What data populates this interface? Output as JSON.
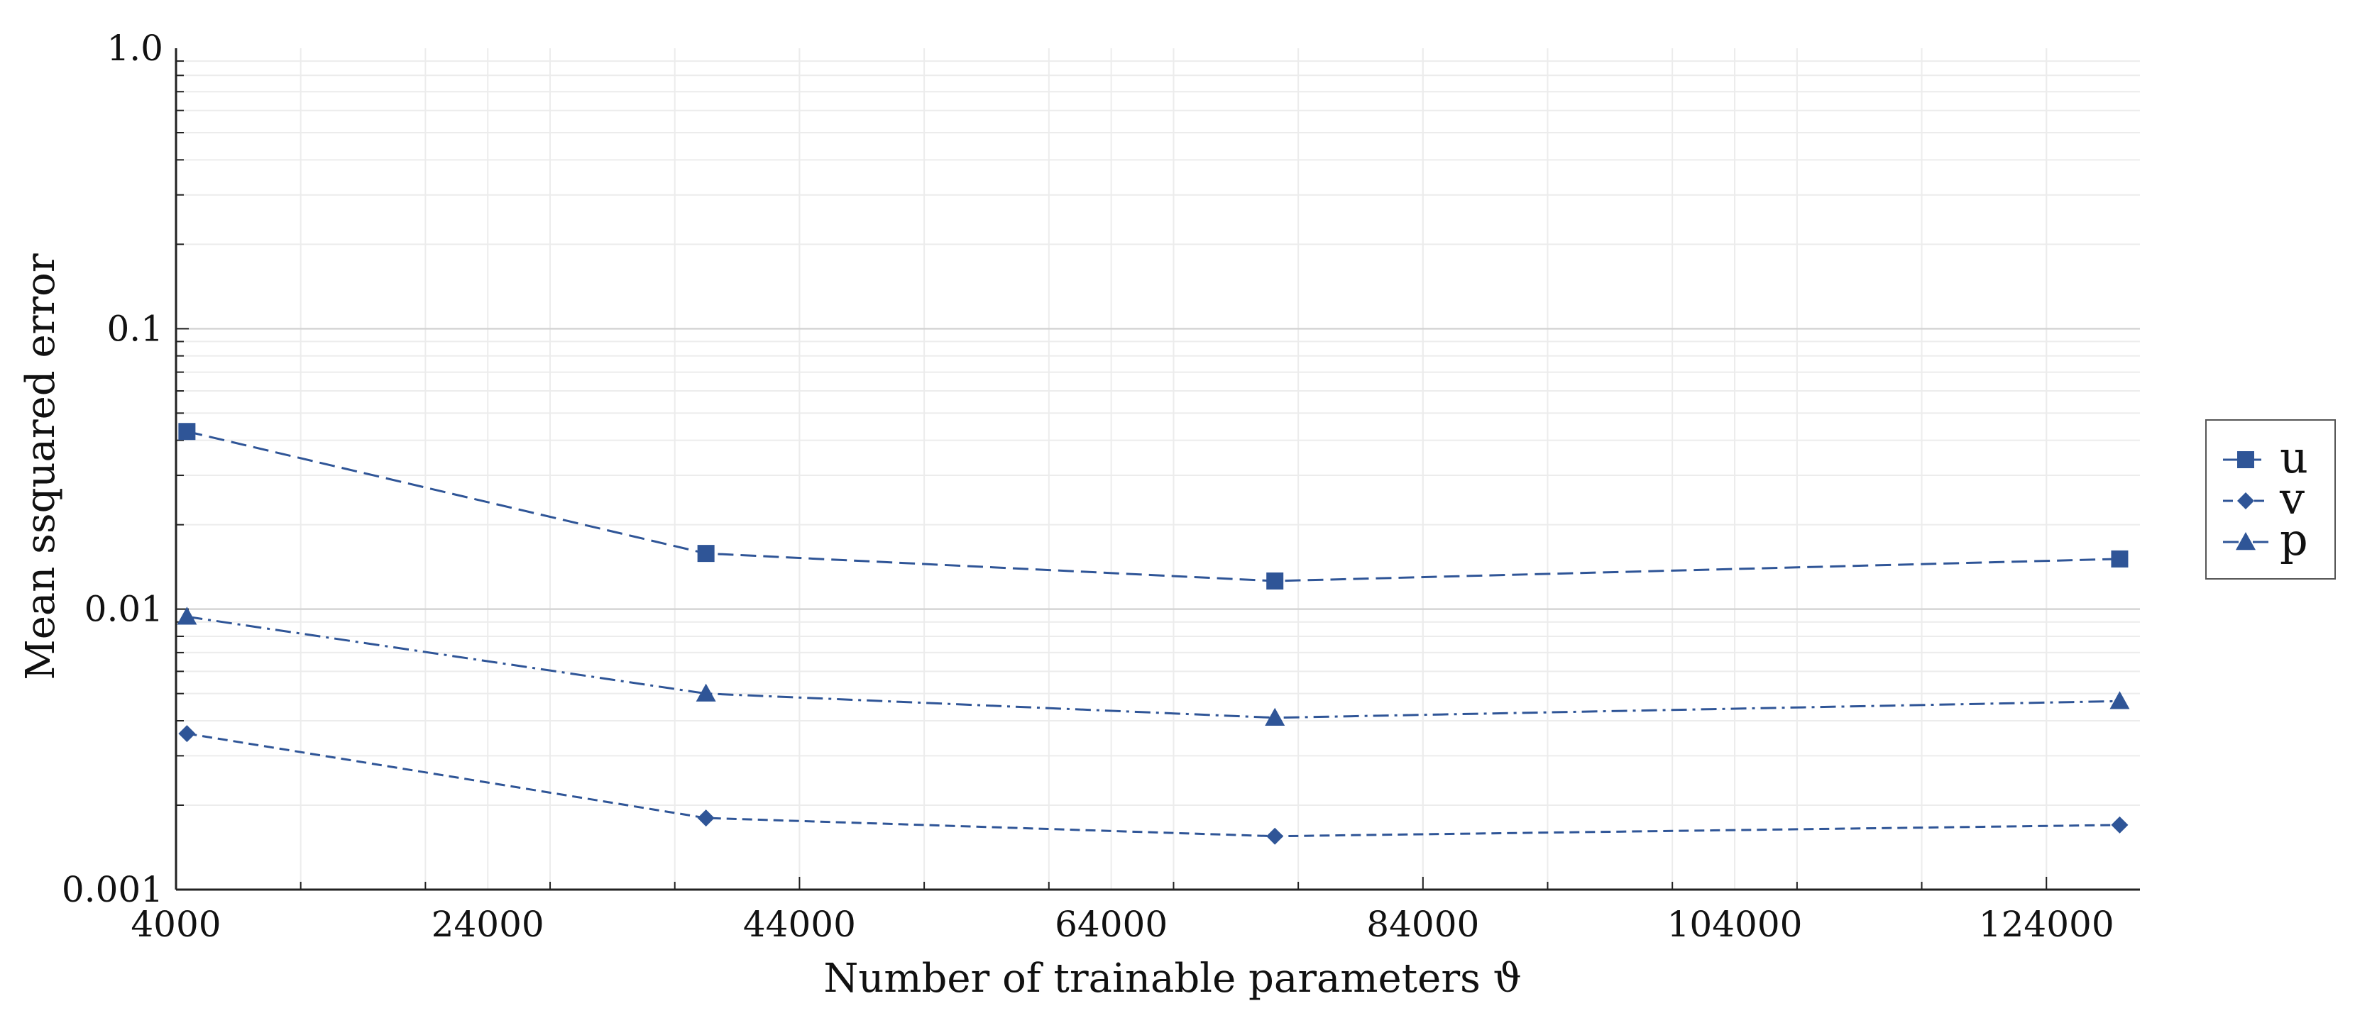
{
  "colors": {
    "series": "#2f5597",
    "major_grid": "#d4d4d4",
    "minor_grid": "#ececec",
    "axis": "#222222"
  },
  "chart_data": {
    "type": "line",
    "xlabel": "Number of trainable parameters ϑ",
    "ylabel": "Mean ssquared error",
    "xlim": [
      4000,
      130000
    ],
    "ylim": [
      0.001,
      1.0
    ],
    "yscale": "log",
    "grid": true,
    "legend_placement": "right",
    "xticks": [
      {
        "value": 4000,
        "label": "4000"
      },
      {
        "value": 24000,
        "label": "24000"
      },
      {
        "value": 44000,
        "label": "44000"
      },
      {
        "value": 64000,
        "label": "64000"
      },
      {
        "value": 84000,
        "label": "84000"
      },
      {
        "value": 104000,
        "label": "104000"
      },
      {
        "value": 124000,
        "label": "124000"
      }
    ],
    "yticks": [
      {
        "value": 0.001,
        "label": "0.001"
      },
      {
        "value": 0.01,
        "label": "0.01"
      },
      {
        "value": 0.1,
        "label": "0.1"
      },
      {
        "value": 1.0,
        "label": "1.0"
      }
    ],
    "x": [
      4700,
      38000,
      74500,
      128700
    ],
    "series": [
      {
        "name": "u",
        "marker": "square",
        "dash": "dashed",
        "values": [
          0.043,
          0.0158,
          0.0126,
          0.0151
        ]
      },
      {
        "name": "v",
        "marker": "diamond",
        "dash": "densely-dashed",
        "values": [
          0.0036,
          0.0018,
          0.00155,
          0.0017
        ]
      },
      {
        "name": "p",
        "marker": "triangle",
        "dash": "dash-dot",
        "values": [
          0.0094,
          0.005,
          0.0041,
          0.0047
        ]
      }
    ]
  }
}
